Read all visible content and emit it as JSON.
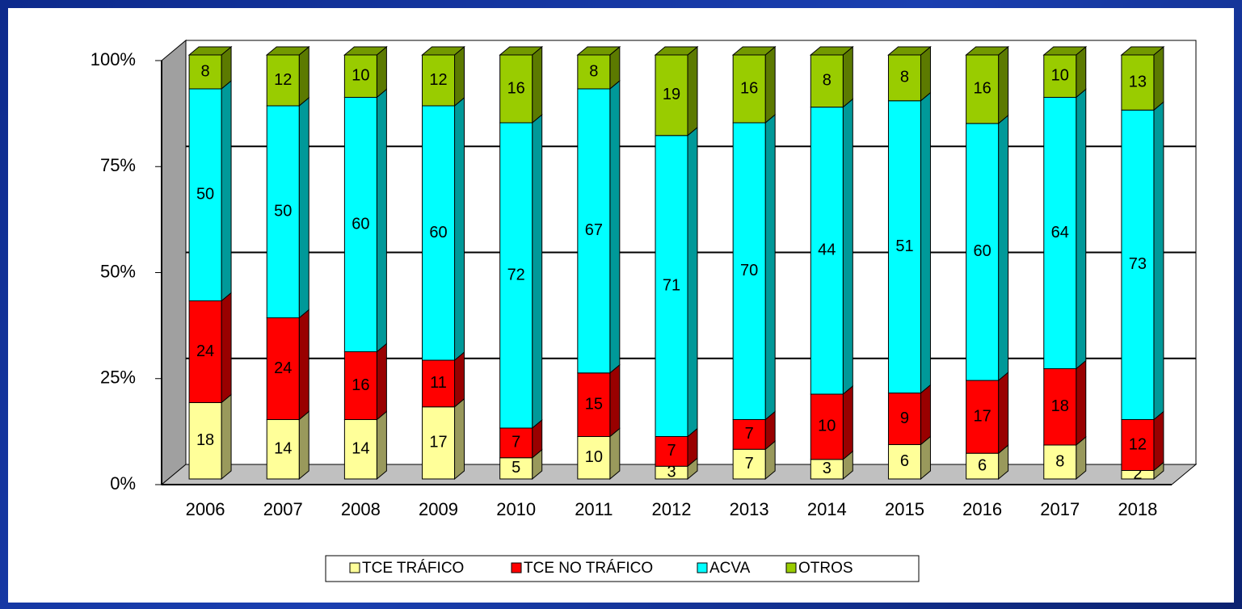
{
  "chart_data": {
    "type": "bar",
    "stacking": "percent",
    "categories": [
      "2006",
      "2007",
      "2008",
      "2009",
      "2010",
      "2011",
      "2012",
      "2013",
      "2014",
      "2015",
      "2016",
      "2017",
      "2018"
    ],
    "series": [
      {
        "name": "TCE TRÁFICO",
        "color": "#ffff99",
        "values": [
          18,
          14,
          14,
          17,
          5,
          10,
          3,
          7,
          3,
          6,
          6,
          8,
          2
        ]
      },
      {
        "name": "TCE NO TRÁFICO",
        "color": "#ff0000",
        "values": [
          24,
          24,
          16,
          11,
          7,
          15,
          7,
          7,
          10,
          9,
          17,
          18,
          12
        ]
      },
      {
        "name": "ACVA",
        "color": "#00ffff",
        "values": [
          50,
          50,
          60,
          60,
          72,
          67,
          71,
          70,
          44,
          51,
          60,
          64,
          73
        ]
      },
      {
        "name": "OTROS",
        "color": "#99cc00",
        "values": [
          8,
          12,
          10,
          12,
          16,
          8,
          19,
          16,
          8,
          8,
          16,
          10,
          13
        ]
      }
    ],
    "ylim": [
      0,
      100
    ],
    "yticks": [
      {
        "value": 0,
        "label": "0%"
      },
      {
        "value": 25,
        "label": "25%"
      },
      {
        "value": 50,
        "label": "50%"
      },
      {
        "value": 75,
        "label": "75%"
      },
      {
        "value": 100,
        "label": "100%"
      }
    ],
    "grid": true,
    "legend": "bottom"
  }
}
